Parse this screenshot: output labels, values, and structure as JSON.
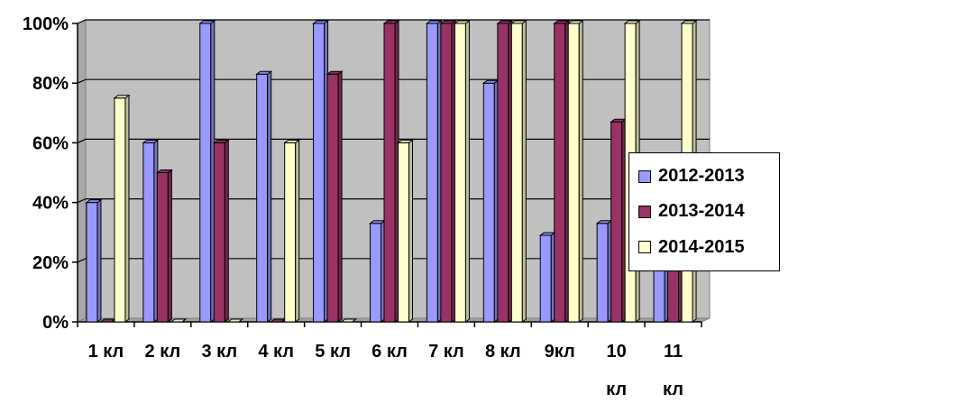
{
  "chart_data": {
    "type": "bar",
    "categories": [
      [
        "1 кл"
      ],
      [
        "2 кл"
      ],
      [
        "3 кл"
      ],
      [
        "4 кл"
      ],
      [
        "5 кл"
      ],
      [
        "6 кл"
      ],
      [
        "7 кл"
      ],
      [
        "8 кл"
      ],
      [
        "9кл"
      ],
      [
        "10",
        "кл"
      ],
      [
        "11",
        "кл"
      ]
    ],
    "series": [
      {
        "name": "2012-2013",
        "color": "#9999FF",
        "values": [
          40,
          60,
          100,
          83,
          100,
          33,
          100,
          80,
          29,
          33,
          20
        ]
      },
      {
        "name": "2013-2014",
        "color": "#993366",
        "values": [
          0,
          50,
          60,
          0,
          83,
          100,
          100,
          100,
          100,
          67,
          33
        ]
      },
      {
        "name": "2014-2015",
        "color": "#FFFFCC",
        "values": [
          75,
          0,
          0,
          60,
          0,
          60,
          100,
          100,
          100,
          100,
          100
        ]
      }
    ],
    "ylim": [
      0,
      100
    ],
    "yticks": [
      "0%",
      "20%",
      "40%",
      "60%",
      "80%",
      "100%"
    ],
    "y_unit": "percent",
    "grid": true,
    "plot_background": "#C0C0C0",
    "legend_position": "right",
    "style": "3d-clustered-column"
  }
}
